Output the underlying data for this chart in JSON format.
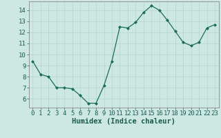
{
  "x": [
    0,
    1,
    2,
    3,
    4,
    5,
    6,
    7,
    8,
    9,
    10,
    11,
    12,
    13,
    14,
    15,
    16,
    17,
    18,
    19,
    20,
    21,
    22,
    23
  ],
  "y": [
    9.4,
    8.2,
    8.0,
    7.0,
    7.0,
    6.9,
    6.3,
    5.6,
    5.6,
    7.2,
    9.4,
    12.5,
    12.4,
    12.9,
    13.8,
    14.4,
    14.0,
    13.1,
    12.1,
    11.1,
    10.8,
    11.1,
    12.4,
    12.7
  ],
  "line_color": "#1a6b5a",
  "marker": "D",
  "marker_size": 2.0,
  "bg_color": "#cde8e2",
  "grid_color": "#b8d8d0",
  "xlabel": "Humidex (Indice chaleur)",
  "xlim": [
    -0.5,
    23.5
  ],
  "ylim": [
    5.2,
    14.8
  ],
  "yticks": [
    6,
    7,
    8,
    9,
    10,
    11,
    12,
    13,
    14
  ],
  "xticks": [
    0,
    1,
    2,
    3,
    4,
    5,
    6,
    7,
    8,
    9,
    10,
    11,
    12,
    13,
    14,
    15,
    16,
    17,
    18,
    19,
    20,
    21,
    22,
    23
  ],
  "tick_fontsize": 6.5,
  "xlabel_fontsize": 7.5
}
